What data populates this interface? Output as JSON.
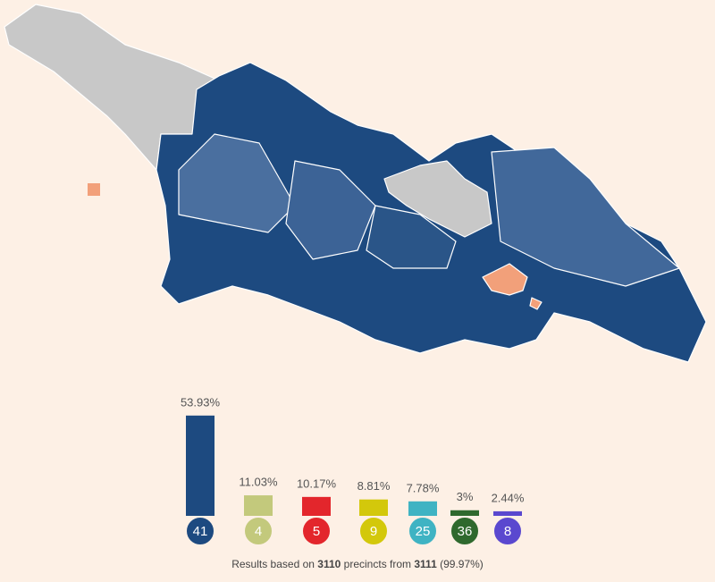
{
  "chart_data": {
    "type": "bar",
    "categories": [
      "41",
      "4",
      "5",
      "9",
      "25",
      "36",
      "8"
    ],
    "values": [
      53.93,
      11.03,
      10.17,
      8.81,
      7.78,
      3,
      2.44
    ],
    "value_labels": [
      "53.93%",
      "11.03%",
      "10.17%",
      "8.81%",
      "7.78%",
      "3%",
      "2.44%"
    ],
    "colors": [
      "#1d4a80",
      "#c3c97c",
      "#e3262c",
      "#d3c80b",
      "#3fb3c3",
      "#2f692e",
      "#5a48cf"
    ]
  },
  "footer": {
    "prefix": "Results based on",
    "precincts": 3110,
    "middle": "precincts from",
    "total": 3111,
    "suffix": "(99.97%)"
  }
}
